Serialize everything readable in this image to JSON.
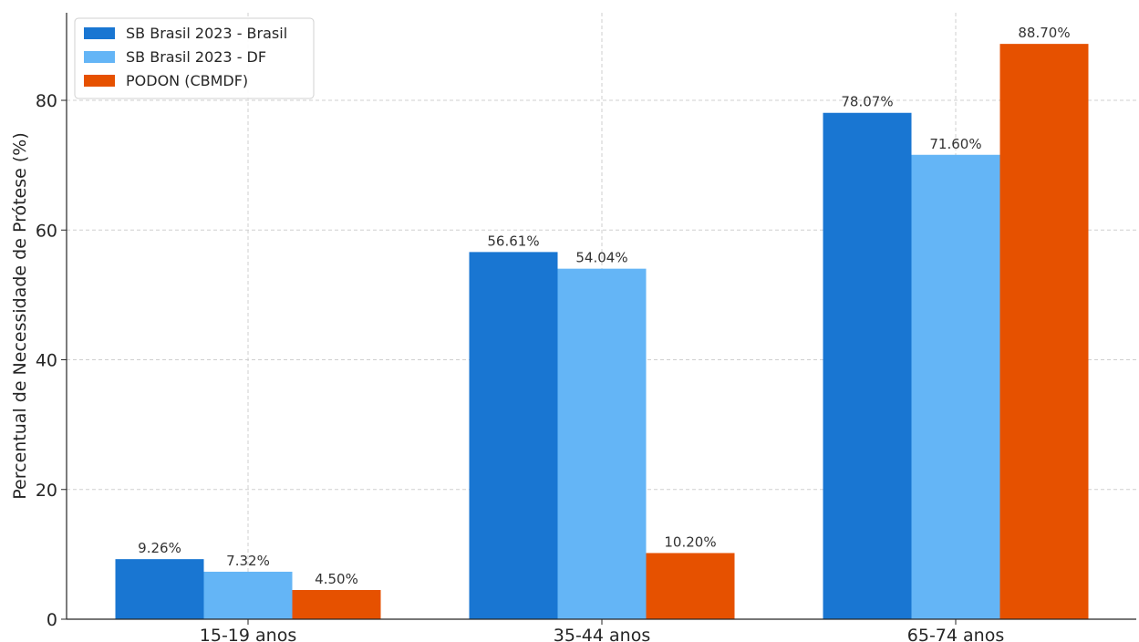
{
  "chart_data": {
    "type": "bar",
    "categories": [
      "15-19 anos",
      "35-44 anos",
      "65-74 anos"
    ],
    "series": [
      {
        "name": "SB Brasil 2023 - Brasil",
        "values": [
          9.26,
          56.61,
          78.07
        ],
        "labels": [
          "9.26%",
          "56.61%",
          "78.07%"
        ],
        "color": "#1976D2"
      },
      {
        "name": "SB Brasil 2023 - DF",
        "values": [
          7.32,
          54.04,
          71.6
        ],
        "labels": [
          "7.32%",
          "54.04%",
          "71.60%"
        ],
        "color": "#64B5F6"
      },
      {
        "name": "PODON (CBMDF)",
        "values": [
          4.5,
          10.2,
          88.7
        ],
        "labels": [
          "4.50%",
          "10.20%",
          "88.70%"
        ],
        "color": "#E65100"
      }
    ],
    "title": "",
    "xlabel": "",
    "ylabel": "Percentual de Necessidade de Prótese (%)",
    "ylim": [
      0,
      93.5
    ],
    "yticks": [
      0,
      20,
      40,
      60,
      80
    ],
    "ytick_labels": [
      "0",
      "20",
      "40",
      "60",
      "80"
    ],
    "grid": true,
    "legend_position": "top-left"
  }
}
